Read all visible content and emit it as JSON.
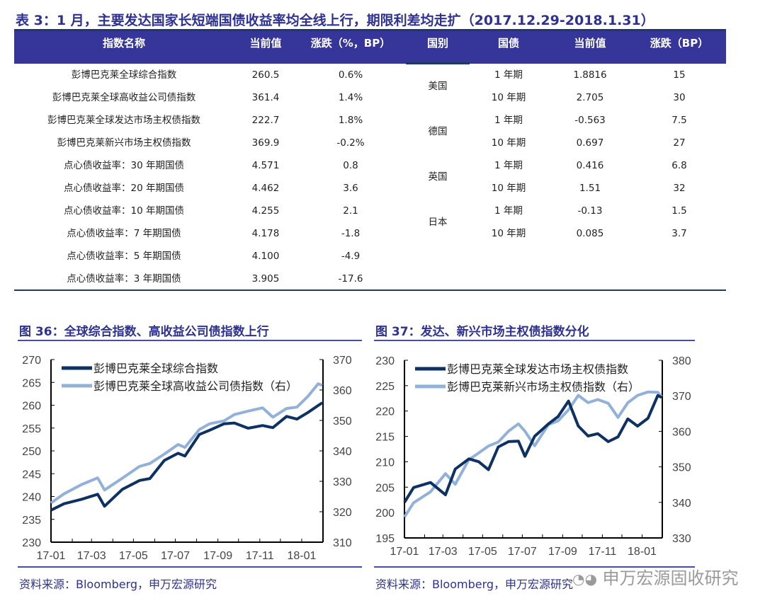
{
  "table": {
    "title": "表 3：1 月，主要发达国家长短端国债收益率均全线上行，期限利差均走扩（2017.12.29-2018.1.31）",
    "left_headers": [
      "指数名称",
      "当前值",
      "涨跌（%，BP）"
    ],
    "right_headers": [
      "国别",
      "国债",
      "当前值",
      "涨跌（BP）"
    ],
    "left_rows": [
      [
        "彭博巴克莱全球综合指数",
        "260.5",
        "0.6%"
      ],
      [
        "彭博巴克莱全球高收益公司债指数",
        "361.4",
        "1.4%"
      ],
      [
        "彭博巴克莱全球发达市场主权债指数",
        "222.7",
        "1.8%"
      ],
      [
        "彭博巴克莱新兴市场主权债指数",
        "369.9",
        "-0.2%"
      ],
      [
        "点心债收益率：30 年期国债",
        "4.571",
        "0.8"
      ],
      [
        "点心债收益率：20 年期国债",
        "4.462",
        "3.6"
      ],
      [
        "点心债收益率：10 年期国债",
        "4.255",
        "2.1"
      ],
      [
        "点心债收益率：7 年期国债",
        "4.178",
        "-1.8"
      ],
      [
        "点心债收益率：5 年期国债",
        "4.100",
        "-4.9"
      ],
      [
        "点心债收益率：3 年期国债",
        "3.905",
        "-17.6"
      ]
    ],
    "right_groups": [
      {
        "country": "美国",
        "rows": [
          [
            "1 年期",
            "1.8816",
            "15"
          ],
          [
            "10 年期",
            "2.705",
            "30"
          ]
        ]
      },
      {
        "country": "德国",
        "rows": [
          [
            "1 年期",
            "-0.563",
            "7.5"
          ],
          [
            "10 年期",
            "0.697",
            "27"
          ]
        ]
      },
      {
        "country": "英国",
        "rows": [
          [
            "1 年期",
            "0.416",
            "6.8"
          ],
          [
            "10 年期",
            "1.51",
            "32"
          ]
        ]
      },
      {
        "country": "日本",
        "rows": [
          [
            "1 年期",
            "-0.13",
            "1.5"
          ],
          [
            "10 年期",
            "0.085",
            "3.7"
          ]
        ]
      }
    ]
  },
  "colors": {
    "header": "#35359a",
    "title": "#2e3192",
    "dark_series": "#0d3163",
    "light_series": "#92b1d9"
  },
  "chart_data": [
    {
      "type": "line",
      "title": "图 36：全球综合指数、高收益公司债指数上行",
      "source": "资料来源：Bloomberg，申万宏源研究",
      "xticks": [
        "17-01",
        "17-03",
        "17-05",
        "17-07",
        "17-09",
        "17-11",
        "18-01"
      ],
      "ylim": [
        230,
        270
      ],
      "yticks": [
        230,
        235,
        240,
        245,
        250,
        255,
        260,
        265,
        270
      ],
      "y2lim": [
        310,
        370
      ],
      "y2ticks": [
        310,
        320,
        330,
        340,
        350,
        360,
        370
      ],
      "legend": "top-left",
      "x": [
        "2017-01-01",
        "2017-01-20",
        "2017-02-15",
        "2017-03-10",
        "2017-03-20",
        "2017-04-15",
        "2017-05-10",
        "2017-05-25",
        "2017-06-15",
        "2017-07-05",
        "2017-07-15",
        "2017-08-05",
        "2017-08-20",
        "2017-09-10",
        "2017-09-25",
        "2017-10-15",
        "2017-11-05",
        "2017-11-20",
        "2017-12-10",
        "2017-12-25",
        "2018-01-10",
        "2018-01-25",
        "2018-01-31"
      ],
      "series": [
        {
          "name": "彭博巴克莱全球综合指数",
          "axis": "left",
          "values": [
            237,
            238.5,
            239.5,
            240.5,
            237.8,
            241.5,
            243.5,
            244,
            248,
            249.5,
            248.8,
            253.5,
            254.5,
            256,
            256.2,
            255,
            255.5,
            255,
            257.5,
            257,
            258.5,
            260,
            260.5
          ]
        },
        {
          "name": "彭博巴克莱全球高收益公司债指数（右）",
          "axis": "right",
          "values": [
            323,
            326,
            329,
            331,
            327,
            331,
            335,
            336,
            339,
            342,
            341,
            347,
            349,
            350,
            352,
            353,
            354,
            351,
            354,
            354.5,
            358,
            362,
            361.4
          ]
        }
      ]
    },
    {
      "type": "line",
      "title": "图 37：发达、新兴市场主权债指数分化",
      "source": "资料来源：Bloomberg，申万宏源研究",
      "xticks": [
        "17-01",
        "17-03",
        "17-05",
        "17-07",
        "17-09",
        "17-11",
        "18-01"
      ],
      "ylim": [
        195,
        230
      ],
      "yticks": [
        195,
        200,
        205,
        210,
        215,
        220,
        225,
        230
      ],
      "y2lim": [
        330,
        380
      ],
      "y2ticks": [
        330,
        340,
        350,
        360,
        370,
        380
      ],
      "legend": "top-left",
      "x": [
        "2017-01-01",
        "2017-01-15",
        "2017-02-10",
        "2017-03-05",
        "2017-03-20",
        "2017-04-10",
        "2017-04-25",
        "2017-05-10",
        "2017-05-25",
        "2017-06-10",
        "2017-06-25",
        "2017-07-05",
        "2017-07-20",
        "2017-08-10",
        "2017-08-25",
        "2017-09-10",
        "2017-09-25",
        "2017-10-10",
        "2017-10-25",
        "2017-11-10",
        "2017-11-25",
        "2017-12-10",
        "2017-12-25",
        "2018-01-10",
        "2018-01-25",
        "2018-01-31"
      ],
      "series": [
        {
          "name": "彭博巴克莱全球发达市场主权债指数",
          "axis": "left",
          "values": [
            202,
            205,
            206,
            203.5,
            208.5,
            210.5,
            210,
            208.5,
            213,
            214,
            214,
            211,
            215,
            217.5,
            219,
            222,
            217,
            215,
            215.5,
            214,
            215,
            218.5,
            217,
            218.5,
            223,
            222.7
          ]
        },
        {
          "name": "彭博巴克莱新兴市场主权债指数（右）",
          "axis": "right",
          "values": [
            336,
            340,
            343,
            348,
            345,
            352,
            354,
            356,
            357,
            360,
            362,
            360,
            356,
            362,
            363,
            366,
            370,
            368,
            369,
            368,
            364,
            368,
            370,
            371,
            371,
            369.9
          ]
        }
      ]
    }
  ],
  "watermark": "申万宏源固收研究"
}
